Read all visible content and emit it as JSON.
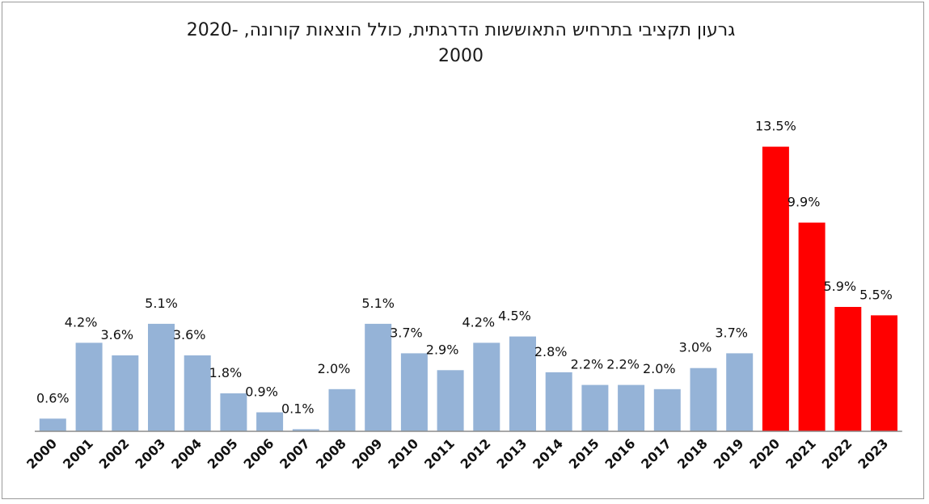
{
  "title_line1": "גרעון תקציבי בתרחיש התאוששות הדרגתית, כולל הוצאות קורונה, -2020",
  "title_line2": "2000",
  "colors": {
    "historical": "#95b3d7",
    "projected": "#ff0000",
    "axis": "#8c8c8c"
  },
  "chart_data": {
    "type": "bar",
    "title": "גרעון תקציבי בתרחיש התאוששות הדרגתית, כולל הוצאות קורונה, -2020 2000",
    "categories": [
      "2000",
      "2001",
      "2002",
      "2003",
      "2004",
      "2005",
      "2006",
      "2007",
      "2008",
      "2009",
      "2010",
      "2011",
      "2012",
      "2013",
      "2014",
      "2015",
      "2016",
      "2017",
      "2018",
      "2019",
      "2020",
      "2021",
      "2022",
      "2023"
    ],
    "values": [
      0.6,
      4.2,
      3.6,
      5.1,
      3.6,
      1.8,
      0.9,
      0.1,
      2.0,
      5.1,
      3.7,
      2.9,
      4.2,
      4.5,
      2.8,
      2.2,
      2.2,
      2.0,
      3.0,
      3.7,
      13.5,
      9.9,
      5.9,
      5.5
    ],
    "labels": [
      "0.6%",
      "4.2%",
      "3.6%",
      "5.1%",
      "3.6%",
      "1.8%",
      "0.9%",
      "0.1%",
      "2.0%",
      "5.1%",
      "3.7%",
      "2.9%",
      "4.2%",
      "4.5%",
      "2.8%",
      "2.2%",
      "2.2%",
      "2.0%",
      "3.0%",
      "3.7%",
      "13.5%",
      "9.9%",
      "5.9%",
      "5.5%"
    ],
    "highlight_from_index": 20,
    "ylim": [
      0,
      14
    ],
    "grid": false,
    "legend": "none",
    "xlabel": "",
    "ylabel": ""
  }
}
